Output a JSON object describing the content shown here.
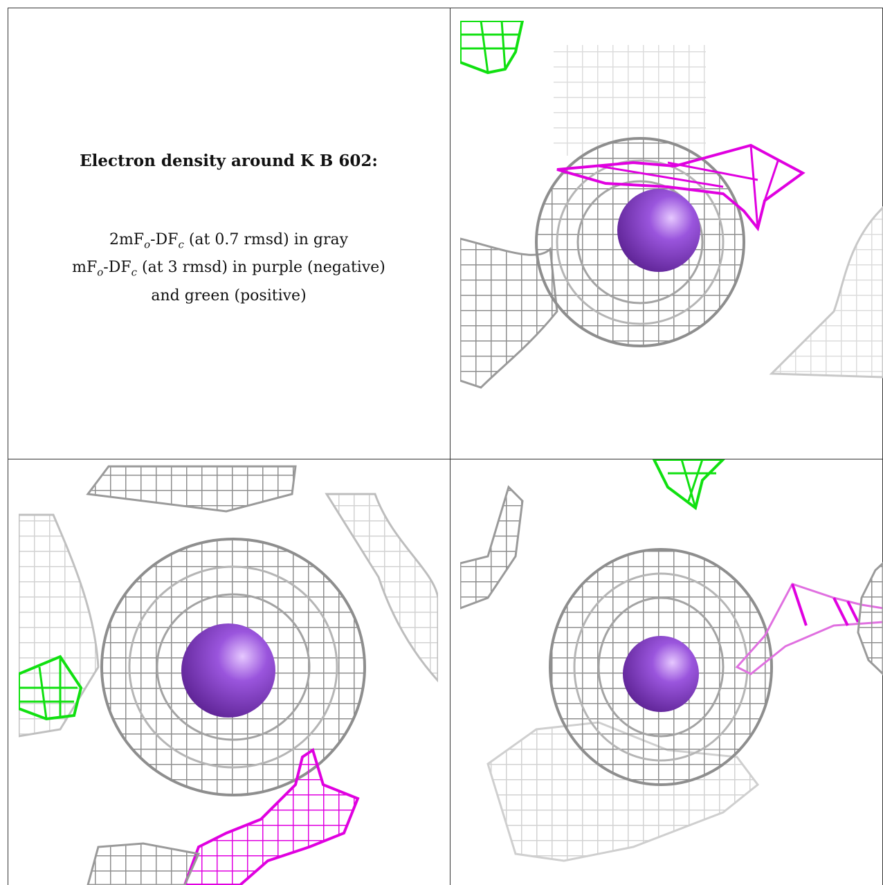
{
  "caption": {
    "title": "Electron density around K B 602:",
    "line1_pre": "2mF",
    "line1_sub1": "o",
    "line1_mid": "-DF",
    "line1_sub2": "c",
    "line1_post": " (at 0.7 rmsd) in gray",
    "line2_pre": "mF",
    "line2_sub1": "o",
    "line2_mid": "-DF",
    "line2_sub2": "c",
    "line2_post": " (at 3 rmsd) in purple (negative)",
    "line3": "and green (positive)"
  },
  "colors": {
    "map_2fofc": "#8a8a8a",
    "map_2fofc_far": "#d8d8d8",
    "map_fofc_negative": "#e000e0",
    "map_fofc_positive": "#10e010",
    "potassium_ion": "#8a44cc"
  },
  "panels": [
    {
      "name": "view-1",
      "ion_label": "K B 602"
    },
    {
      "name": "view-2",
      "ion_label": "K B 602"
    },
    {
      "name": "view-3",
      "ion_label": "K B 602"
    }
  ]
}
